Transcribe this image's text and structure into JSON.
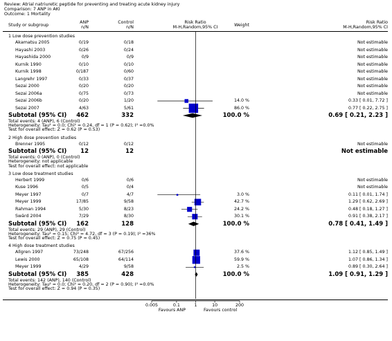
{
  "header": {
    "review": "Review:  Atrial natriuretic peptide for preventing and treating acute kidney injury",
    "comparison": "Comparison:  7 ANP in AKI",
    "outcome": "Outcome:  1 Mortality"
  },
  "columns": {
    "study": "Study or subgroup",
    "anp": "ANP",
    "anp_sub": "n/N",
    "control": "Control",
    "control_sub": "n/N",
    "rr": "Risk Ratio",
    "rr_sub": "M-H,Random,95% CI",
    "weight": "Weight",
    "rr2": "Risk Ratio",
    "rr2_sub": "M-H,Random,95% CI"
  },
  "chart_data": {
    "type": "forest",
    "scale": "log",
    "xlim": [
      0.005,
      200
    ],
    "ticks": [
      "0.005",
      "0.1",
      "1",
      "10",
      "200"
    ],
    "favours_left": "Favours ANP",
    "favours_right": "Favours control",
    "groups": [
      {
        "title": "1 Low dose prevention studies",
        "studies": [
          {
            "name": "Akamatsu 2005",
            "anp": "0/19",
            "control": "0/18",
            "weight": "",
            "ci_text": "Not estimable"
          },
          {
            "name": "Hayashi 2003",
            "anp": "0/26",
            "control": "0/24",
            "weight": "",
            "ci_text": "Not estimable"
          },
          {
            "name": "Hayashida 2000",
            "anp": "0/9",
            "control": "0/9",
            "weight": "",
            "ci_text": "Not estimable"
          },
          {
            "name": "Kurnik 1990",
            "anp": "0/10",
            "control": "0/10",
            "weight": "",
            "ci_text": "Not estimable"
          },
          {
            "name": "Kurnik 1998",
            "anp": "0/187",
            "control": "0/60",
            "weight": "",
            "ci_text": "Not estimable"
          },
          {
            "name": "Langrehr 1997",
            "anp": "0/33",
            "control": "0/37",
            "weight": "",
            "ci_text": "Not estimable"
          },
          {
            "name": "Sezai 2000",
            "anp": "0/20",
            "control": "0/20",
            "weight": "",
            "ci_text": "Not estimable"
          },
          {
            "name": "Sezai 2006a",
            "anp": "0/75",
            "control": "0/73",
            "weight": "",
            "ci_text": "Not estimable"
          },
          {
            "name": "Sezai 2006b",
            "anp": "0/20",
            "control": "1/20",
            "weight": "14.0 %",
            "ci_text": "0.33 [ 0.01, 7.72 ]",
            "rr": 0.33,
            "lo": 0.01,
            "hi": 7.72,
            "w": 14.0
          },
          {
            "name": "Sezai 2007",
            "anp": "4/63",
            "control": "5/61",
            "weight": "86.0 %",
            "ci_text": "0.77 [ 0.22, 2.75 ]",
            "rr": 0.77,
            "lo": 0.22,
            "hi": 2.75,
            "w": 86.0
          }
        ],
        "subtotal": {
          "label": "Subtotal (95% CI)",
          "anp": "462",
          "control": "332",
          "weight": "100.0 %",
          "ci_text": "0.69 [ 0.21, 2.23 ]",
          "rr": 0.69,
          "lo": 0.21,
          "hi": 2.23
        },
        "notes": [
          "Total events: 4 (ANP), 6 (Control)",
          "Heterogeneity: Tau² = 0.0; Chi² = 0.24, df = 1 (P = 0.62); I² =0.0%",
          "Test for overall effect: Z = 0.62 (P = 0.53)"
        ]
      },
      {
        "title": "2 High dose prevention studies",
        "studies": [
          {
            "name": "Brenner 1995",
            "anp": "0/12",
            "control": "0/12",
            "weight": "",
            "ci_text": "Not estimable"
          }
        ],
        "subtotal": {
          "label": "Subtotal (95% CI)",
          "anp": "12",
          "control": "12",
          "weight": "",
          "ci_text": "Not estimable"
        },
        "notes": [
          "Total events: 0 (ANP), 0 (Control)",
          "Heterogeneity: not applicable",
          "Test for overall effect: not applicable"
        ]
      },
      {
        "title": "3 Low dose treatment studies",
        "studies": [
          {
            "name": "Herbert 1999",
            "anp": "0/6",
            "control": "0/6",
            "weight": "",
            "ci_text": "Not estimable"
          },
          {
            "name": "Kuse 1996",
            "anp": "0/5",
            "control": "0/4",
            "weight": "",
            "ci_text": "Not estimable"
          },
          {
            "name": "Meyer 1997",
            "anp": "0/7",
            "control": "4/7",
            "weight": "3.0 %",
            "ci_text": "0.11 [ 0.01, 1.74 ]",
            "rr": 0.11,
            "lo": 0.01,
            "hi": 1.74,
            "w": 3.0
          },
          {
            "name": "Meyer 1999",
            "anp": "17/85",
            "control": "9/58",
            "weight": "42.7 %",
            "ci_text": "1.29 [ 0.62, 2.69 ]",
            "rr": 1.29,
            "lo": 0.62,
            "hi": 2.69,
            "w": 42.7
          },
          {
            "name": "Rahman 1994",
            "anp": "5/30",
            "control": "8/23",
            "weight": "24.2 %",
            "ci_text": "0.48 [ 0.18, 1.27 ]",
            "rr": 0.48,
            "lo": 0.18,
            "hi": 1.27,
            "w": 24.2
          },
          {
            "name": "Swärd 2004",
            "anp": "7/29",
            "control": "8/30",
            "weight": "30.1 %",
            "ci_text": "0.91 [ 0.38, 2.17 ]",
            "rr": 0.91,
            "lo": 0.38,
            "hi": 2.17,
            "w": 30.1
          }
        ],
        "subtotal": {
          "label": "Subtotal (95% CI)",
          "anp": "162",
          "control": "128",
          "weight": "100.0 %",
          "ci_text": "0.78 [ 0.41, 1.49 ]",
          "rr": 0.78,
          "lo": 0.41,
          "hi": 1.49
        },
        "notes": [
          "Total events: 29 (ANP), 29 (Control)",
          "Heterogeneity: Tau² = 0.15; Chi² = 4.72, df = 3 (P = 0.19); I² =36%",
          "Test for overall effect: Z = 0.75 (P = 0.45)"
        ]
      },
      {
        "title": "4 High dose treatment studies",
        "studies": [
          {
            "name": "Allgren 1997",
            "anp": "73/248",
            "control": "67/256",
            "weight": "37.6 %",
            "ci_text": "1.12 [ 0.85, 1.49 ]",
            "rr": 1.12,
            "lo": 0.85,
            "hi": 1.49,
            "w": 37.6
          },
          {
            "name": "Lewis 2000",
            "anp": "65/108",
            "control": "64/114",
            "weight": "59.9 %",
            "ci_text": "1.07 [ 0.86, 1.34 ]",
            "rr": 1.07,
            "lo": 0.86,
            "hi": 1.34,
            "w": 59.9
          },
          {
            "name": "Meyer 1999",
            "anp": "4/29",
            "control": "9/58",
            "weight": "2.5 %",
            "ci_text": "0.89 [ 0.30, 2.64 ]",
            "rr": 0.89,
            "lo": 0.3,
            "hi": 2.64,
            "w": 2.5
          }
        ],
        "subtotal": {
          "label": "Subtotal (95% CI)",
          "anp": "385",
          "control": "428",
          "weight": "100.0 %",
          "ci_text": "1.09 [ 0.91, 1.29 ]",
          "rr": 1.09,
          "lo": 0.91,
          "hi": 1.29
        },
        "notes": [
          "Total events: 142 (ANP), 140 (Control)",
          "Heterogeneity: Tau² = 0.0; Chi² = 0.20, df = 2 (P = 0.90); I² =0.0%",
          "Test for overall effect: Z = 0.94 (P = 0.35)"
        ]
      }
    ]
  },
  "colors": {
    "box": "#0000cc",
    "diamond": "#000000",
    "line": "#000000"
  }
}
